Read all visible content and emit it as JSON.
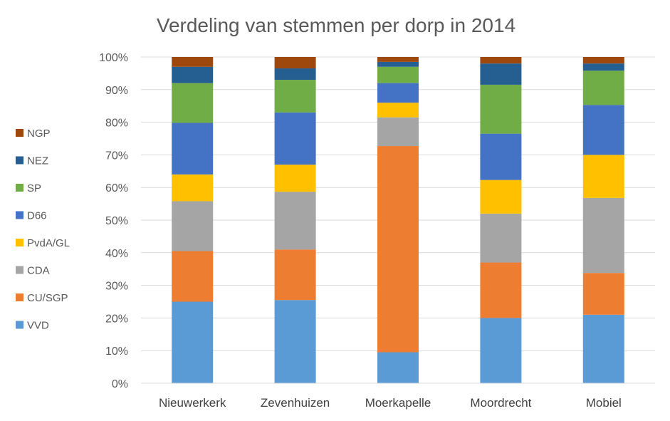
{
  "chart_data": {
    "type": "bar",
    "stacked": "percent",
    "title": "Verdeling van stemmen per dorp in 2014",
    "xlabel": "",
    "ylabel": "",
    "ylim": [
      0,
      100
    ],
    "y_ticks": [
      "0%",
      "10%",
      "20%",
      "30%",
      "40%",
      "50%",
      "60%",
      "70%",
      "80%",
      "90%",
      "100%"
    ],
    "grid": true,
    "legend_position": "left",
    "categories": [
      "Nieuwerkerk",
      "Zevenhuizen",
      "Moerkapelle",
      "Moordrecht",
      "Mobiel"
    ],
    "series": [
      {
        "name": "VVD",
        "color": "#5B9BD5",
        "values": [
          25.0,
          25.5,
          9.5,
          20.0,
          21.0
        ]
      },
      {
        "name": "CU/SGP",
        "color": "#ED7D31",
        "values": [
          15.5,
          15.5,
          63.2,
          17.0,
          12.8
        ]
      },
      {
        "name": "CDA",
        "color": "#A5A5A5",
        "values": [
          15.3,
          17.7,
          8.8,
          15.0,
          23.0
        ]
      },
      {
        "name": "PvdA/GL",
        "color": "#FFC000",
        "values": [
          8.2,
          8.3,
          4.5,
          10.3,
          13.2
        ]
      },
      {
        "name": "D66",
        "color": "#4472C4",
        "values": [
          15.8,
          16.0,
          6.0,
          14.2,
          15.3
        ]
      },
      {
        "name": "SP",
        "color": "#70AD47",
        "values": [
          12.2,
          10.0,
          5.0,
          15.0,
          10.5
        ]
      },
      {
        "name": "NEZ",
        "color": "#255E91",
        "values": [
          5.0,
          3.5,
          1.5,
          6.5,
          2.2
        ]
      },
      {
        "name": "NGP",
        "color": "#9E480E",
        "values": [
          3.0,
          3.5,
          1.5,
          2.0,
          2.0
        ]
      }
    ]
  }
}
